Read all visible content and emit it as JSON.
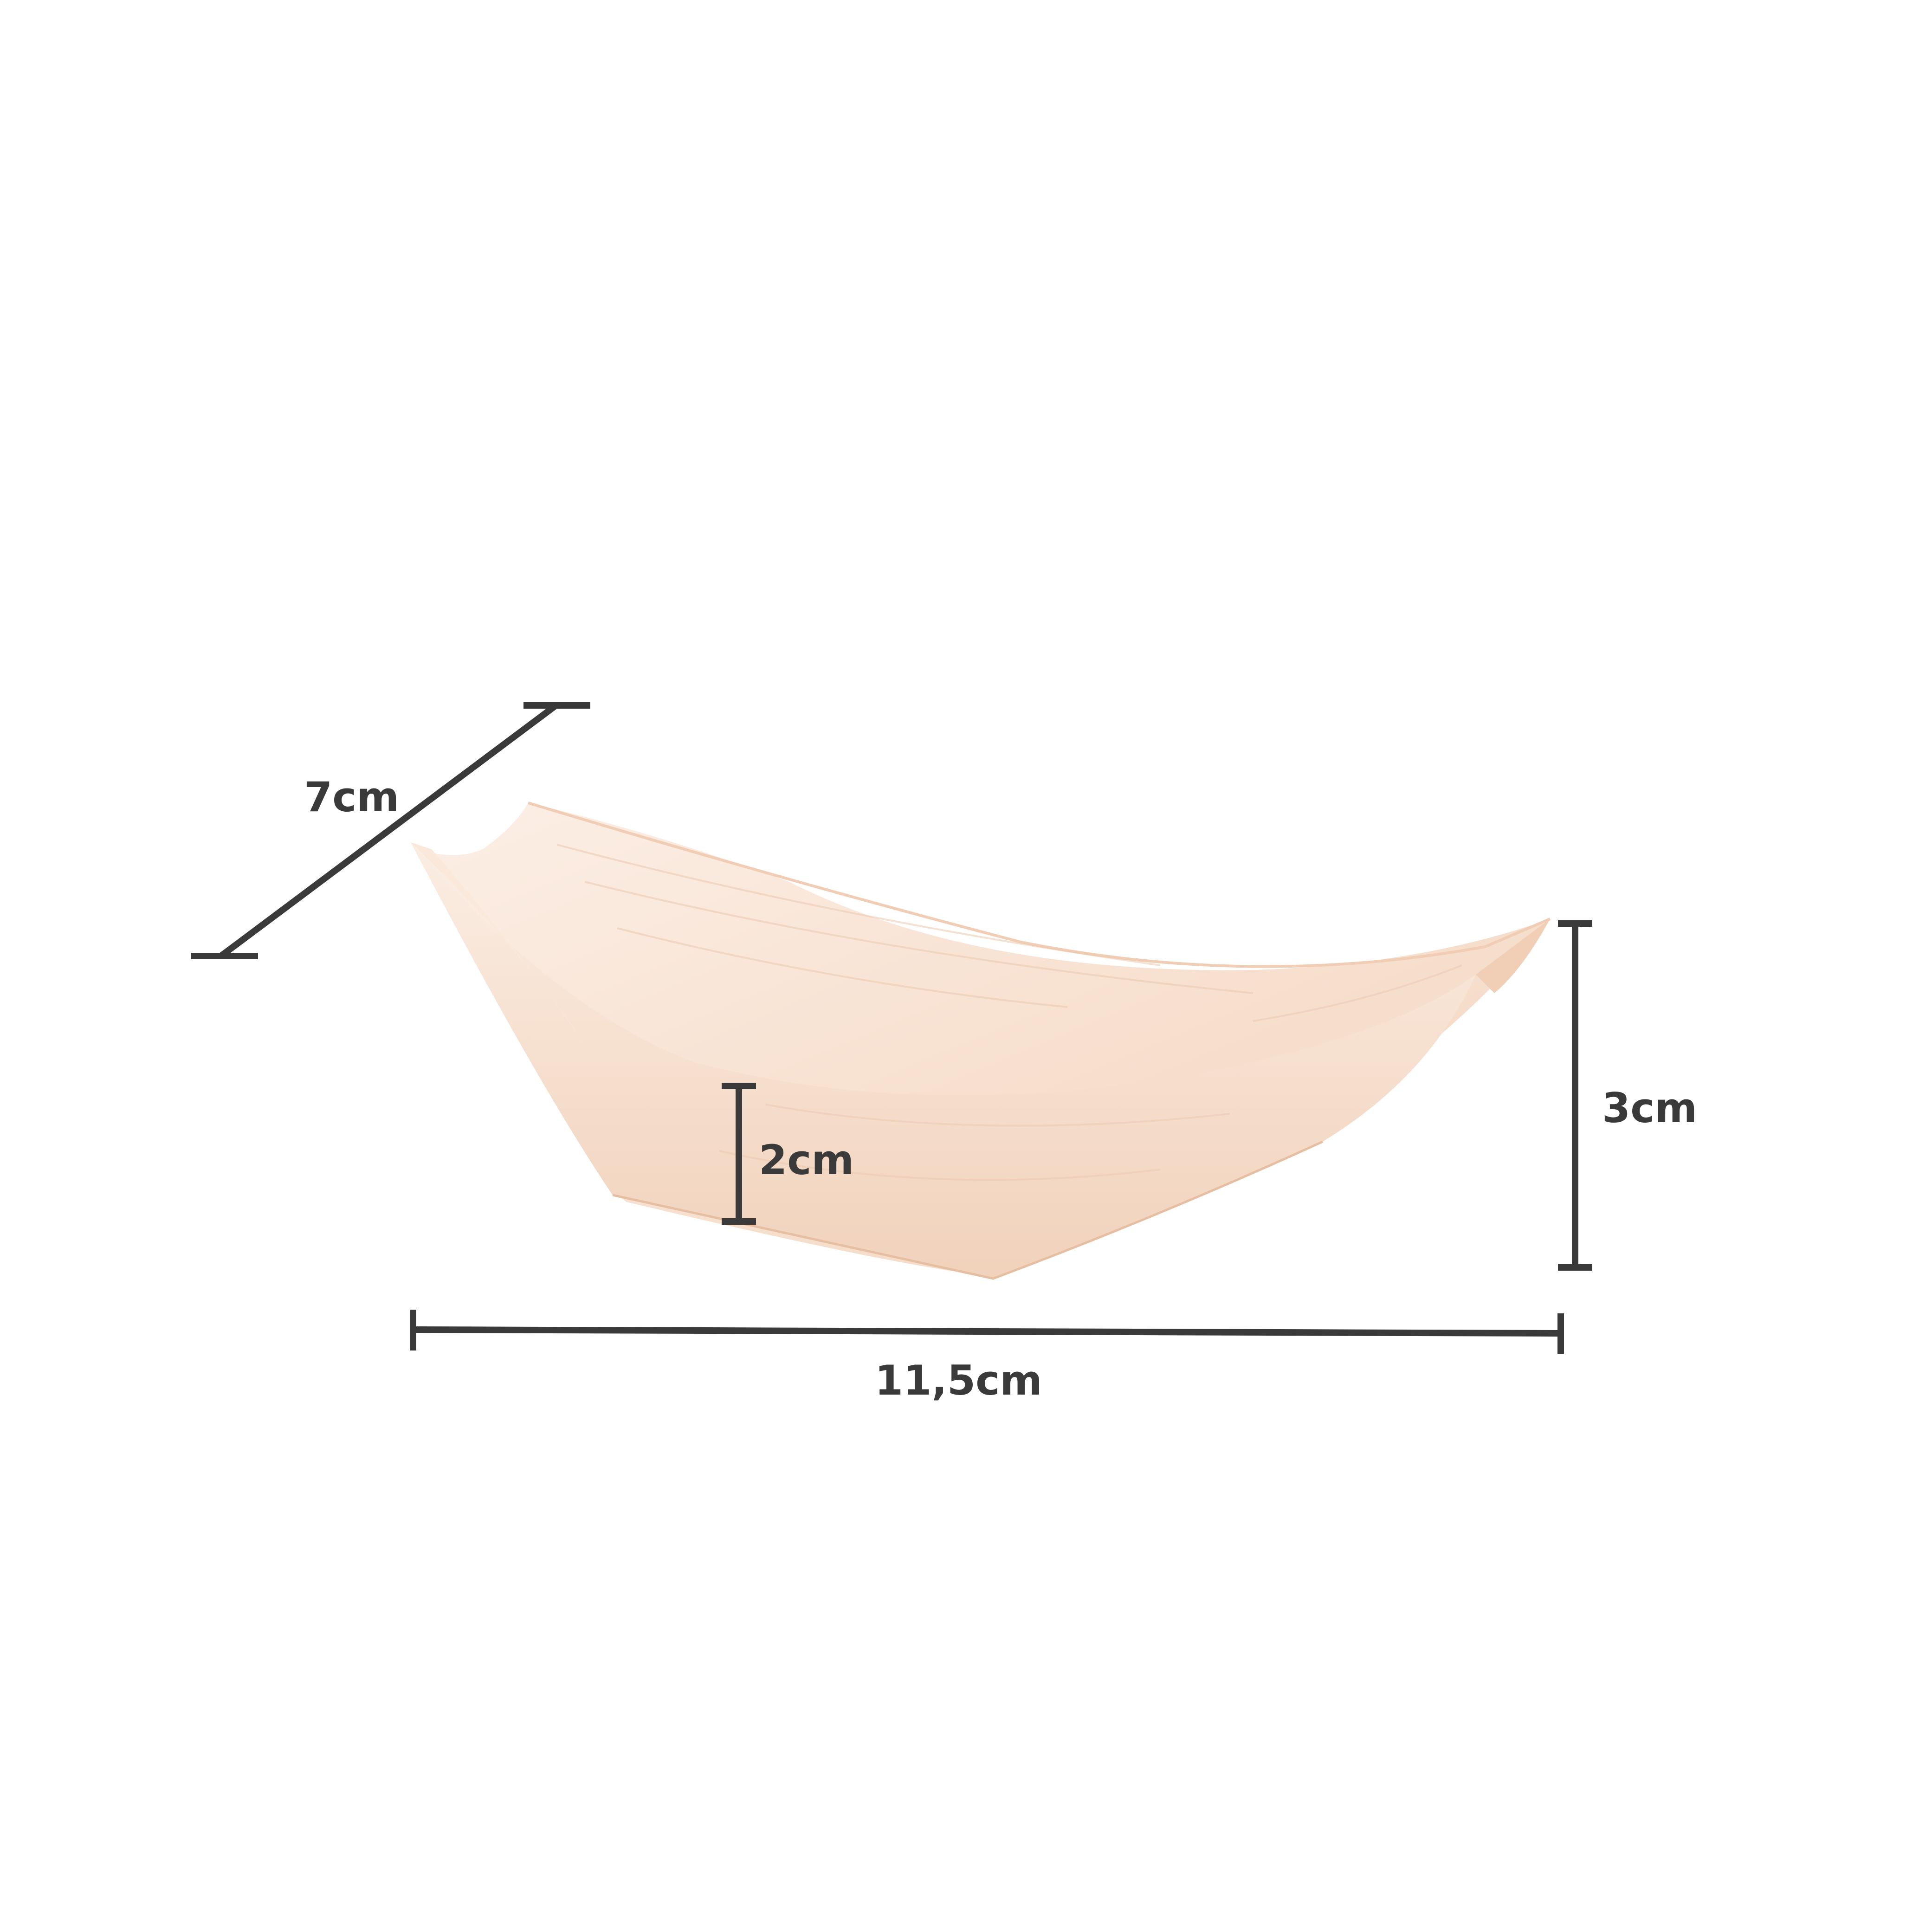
{
  "colors": {
    "background": "#ffffff",
    "dimension_line": "#3a3a3a",
    "wood_light": "#fbeee4",
    "wood_mid": "#f6dcc8",
    "wood_dark": "#eecbb0",
    "wood_grain": "#e9c3a6"
  },
  "dimensions": {
    "width": {
      "label": "7cm"
    },
    "length": {
      "label": "11,5cm"
    },
    "height_total": {
      "label": "3cm"
    },
    "height_inner": {
      "label": "2cm"
    }
  }
}
